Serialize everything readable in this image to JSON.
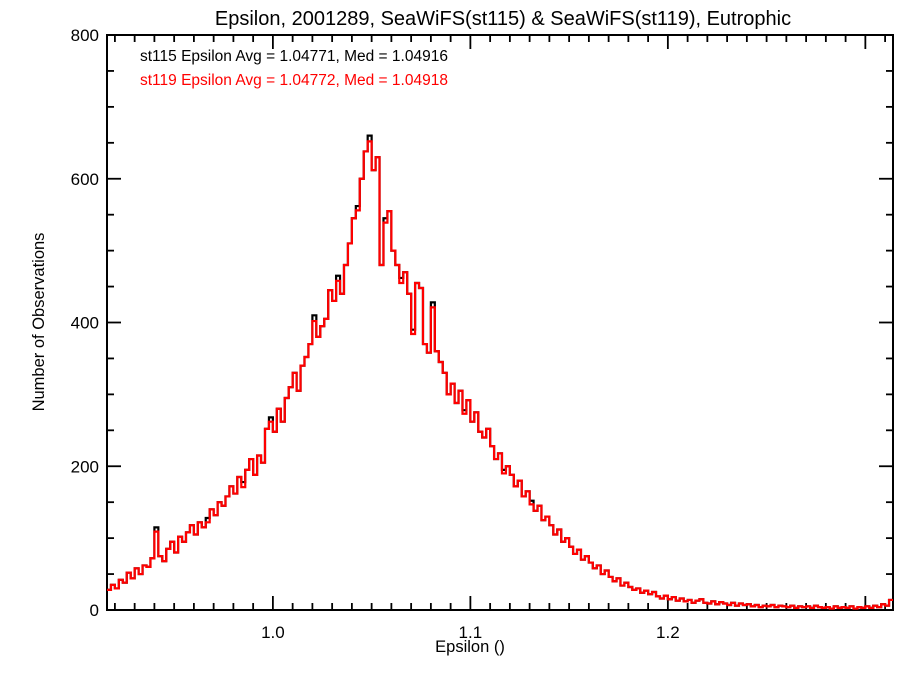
{
  "page": {
    "background": "#ffffff"
  },
  "chart_data": {
    "type": "histogram-step",
    "title": "Epsilon, 2001289, SeaWiFS(st115) & SeaWiFS(st119), Eutrophic",
    "xlabel": "Epsilon ()",
    "ylabel": "Number of Observations",
    "xlim": [
      0.916,
      1.314
    ],
    "ylim": [
      0,
      800
    ],
    "grid": false,
    "legend_position": "top-left-inside",
    "x_ticks": {
      "labeled": [
        {
          "value": 1.0,
          "label": "1.0"
        },
        {
          "value": 1.1,
          "label": "1.1"
        },
        {
          "value": 1.2,
          "label": "1.2"
        }
      ],
      "major_unlabeled": [
        1.3
      ],
      "minor_step": 0.01
    },
    "y_ticks": {
      "labeled": [
        {
          "value": 0,
          "label": "0"
        },
        {
          "value": 200,
          "label": "200"
        },
        {
          "value": 400,
          "label": "400"
        },
        {
          "value": 600,
          "label": "600"
        },
        {
          "value": 800,
          "label": "800"
        }
      ],
      "minor_step": 50
    },
    "bins": {
      "start": 0.916,
      "width": 0.002,
      "count": 199
    },
    "series": [
      {
        "name": "st115",
        "sensor": "SeaWiFS",
        "color": "#000000",
        "legend": "st115 Epsilon Avg = 1.04771, Med = 1.04916",
        "avg": "1.04771",
        "med": "1.04916",
        "values": [
          28,
          35,
          30,
          42,
          38,
          52,
          44,
          58,
          50,
          62,
          60,
          72,
          115,
          75,
          68,
          85,
          95,
          80,
          102,
          95,
          108,
          118,
          105,
          122,
          115,
          128,
          140,
          132,
          150,
          145,
          158,
          172,
          162,
          185,
          178,
          195,
          210,
          188,
          215,
          205,
          252,
          268,
          248,
          280,
          262,
          295,
          310,
          330,
          305,
          340,
          352,
          370,
          410,
          380,
          395,
          405,
          445,
          430,
          465,
          440,
          480,
          510,
          545,
          562,
          600,
          638,
          660,
          612,
          630,
          480,
          545,
          555,
          500,
          480,
          462,
          470,
          440,
          390,
          455,
          448,
          370,
          358,
          428,
          360,
          345,
          330,
          300,
          315,
          288,
          305,
          278,
          292,
          262,
          275,
          248,
          240,
          252,
          228,
          210,
          218,
          195,
          200,
          188,
          172,
          180,
          158,
          165,
          152,
          138,
          145,
          125,
          130,
          118,
          105,
          112,
          95,
          100,
          88,
          78,
          84,
          70,
          75,
          66,
          58,
          62,
          50,
          55,
          46,
          40,
          44,
          34,
          38,
          32,
          28,
          30,
          24,
          27,
          22,
          25,
          19,
          16,
          20,
          15,
          18,
          13,
          16,
          12,
          14,
          10,
          13,
          15,
          10,
          9,
          12,
          8,
          11,
          9,
          7,
          10,
          6,
          9,
          7,
          8,
          5,
          7,
          4,
          6,
          5,
          7,
          4,
          6,
          5,
          4,
          6,
          3,
          5,
          4,
          5,
          3,
          6,
          4,
          3,
          4,
          2,
          5,
          3,
          4,
          3,
          5,
          2,
          4,
          3,
          5,
          3,
          6,
          4,
          8,
          6,
          14
        ]
      },
      {
        "name": "st119",
        "sensor": "SeaWiFS",
        "color": "#ff0000",
        "legend": "st119 Epsilon Avg = 1.04772, Med = 1.04918",
        "avg": "1.04772",
        "med": "1.04918",
        "values_note": "same bins as st115; nearly identical counts, differing only at the bins listed below",
        "values_diff_from_st115": {
          "12": -6,
          "25": -6,
          "34": -7,
          "41": -6,
          "52": -8,
          "58": -7,
          "63": -6,
          "66": -8,
          "70": -6,
          "74": -7,
          "77": -6,
          "82": -7,
          "90": -5,
          "100": -5,
          "107": -5
        }
      }
    ]
  }
}
